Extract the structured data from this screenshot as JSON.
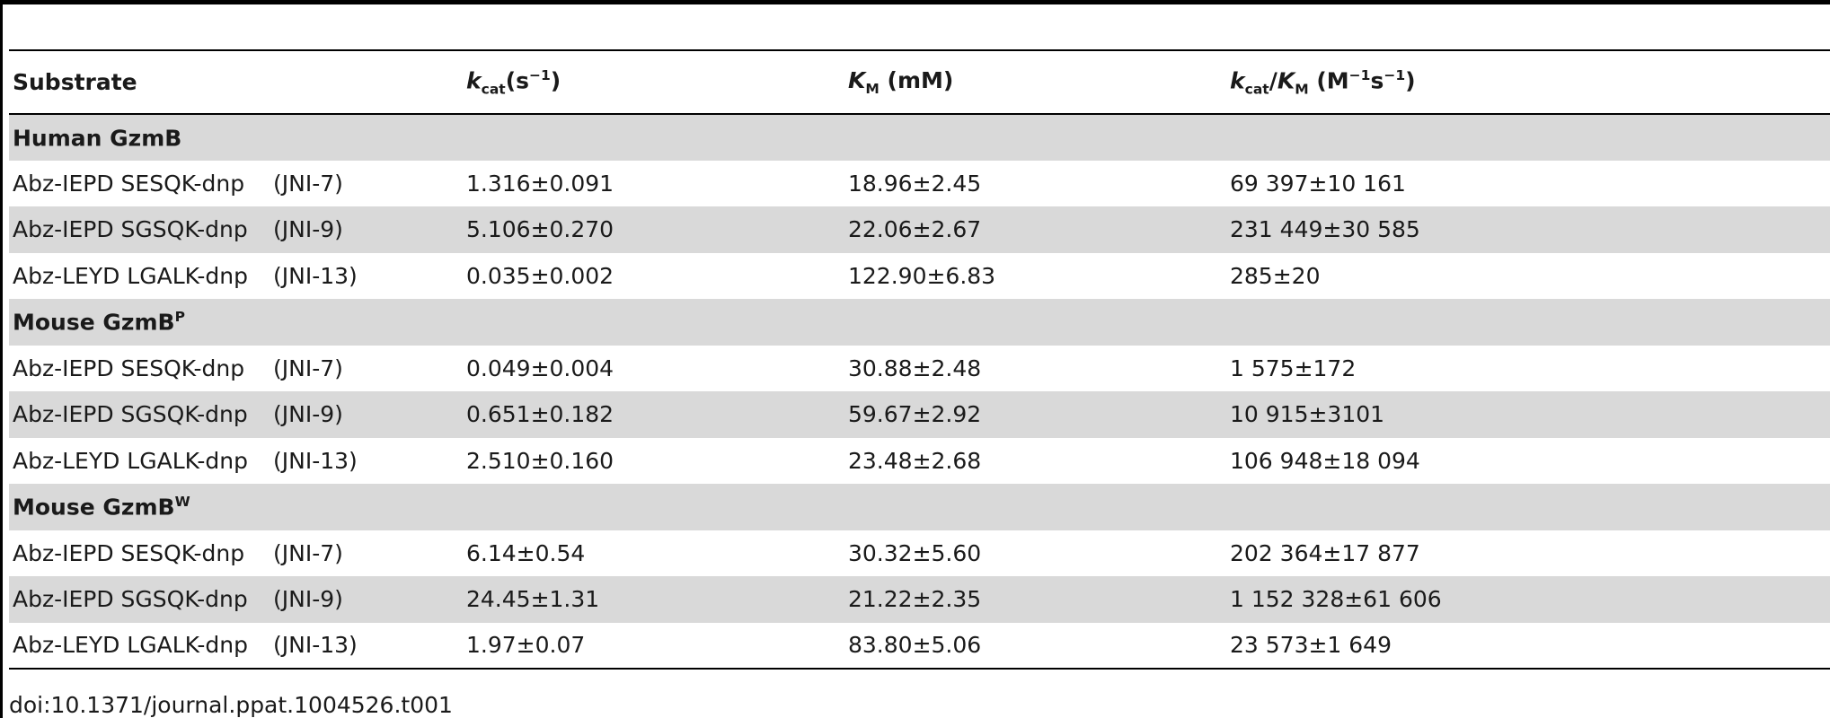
{
  "table": {
    "headers": {
      "substrate": "Substrate",
      "kcat_sym": "k",
      "kcat_sub": "cat",
      "kcat_unit_open": "(s",
      "kcat_unit_sup": "−1",
      "kcat_unit_close": ")",
      "km_sym": "K",
      "km_sub": "M",
      "km_unit": " (mM)",
      "ratio_k": "k",
      "ratio_k_sub": "cat",
      "ratio_slash": "/",
      "ratio_K": "K",
      "ratio_K_sub": "M",
      "ratio_unit_open": " (M",
      "ratio_unit_sup1": "−1",
      "ratio_unit_mid": "s",
      "ratio_unit_sup2": "−1",
      "ratio_unit_close": ")"
    },
    "groups": [
      {
        "name": "Human GzmB",
        "name_sup": "",
        "rows": [
          {
            "substrate": "Abz-IEPD SESQK-dnp",
            "code": "(JNI-7)",
            "kcat": "1.316±0.091",
            "km": "18.96±2.45",
            "ratio": "69 397±10 161"
          },
          {
            "substrate": "Abz-IEPD SGSQK-dnp",
            "code": "(JNI-9)",
            "kcat": "5.106±0.270",
            "km": "22.06±2.67",
            "ratio": "231 449±30 585"
          },
          {
            "substrate": "Abz-LEYD LGALK-dnp",
            "code": "(JNI-13)",
            "kcat": "0.035±0.002",
            "km": "122.90±6.83",
            "ratio": "285±20"
          }
        ]
      },
      {
        "name": "Mouse GzmB",
        "name_sup": "P",
        "rows": [
          {
            "substrate": "Abz-IEPD SESQK-dnp",
            "code": "(JNI-7)",
            "kcat": "0.049±0.004",
            "km": "30.88±2.48",
            "ratio": "1 575±172"
          },
          {
            "substrate": "Abz-IEPD SGSQK-dnp",
            "code": "(JNI-9)",
            "kcat": "0.651±0.182",
            "km": "59.67±2.92",
            "ratio": "10 915±3101"
          },
          {
            "substrate": "Abz-LEYD LGALK-dnp",
            "code": "(JNI-13)",
            "kcat": "2.510±0.160",
            "km": "23.48±2.68",
            "ratio": "106 948±18 094"
          }
        ]
      },
      {
        "name": "Mouse GzmB",
        "name_sup": "W",
        "rows": [
          {
            "substrate": "Abz-IEPD SESQK-dnp",
            "code": "(JNI-7)",
            "kcat": "6.14±0.54",
            "km": "30.32±5.60",
            "ratio": "202 364±17 877"
          },
          {
            "substrate": "Abz-IEPD SGSQK-dnp",
            "code": "(JNI-9)",
            "kcat": "24.45±1.31",
            "km": "21.22±2.35",
            "ratio": "1 152 328±61 606"
          },
          {
            "substrate": "Abz-LEYD LGALK-dnp",
            "code": "(JNI-13)",
            "kcat": "1.97±0.07",
            "km": "83.80±5.06",
            "ratio": "23 573±1 649"
          }
        ]
      }
    ]
  },
  "footnote": "doi:10.1371/journal.ppat.1004526.t001"
}
